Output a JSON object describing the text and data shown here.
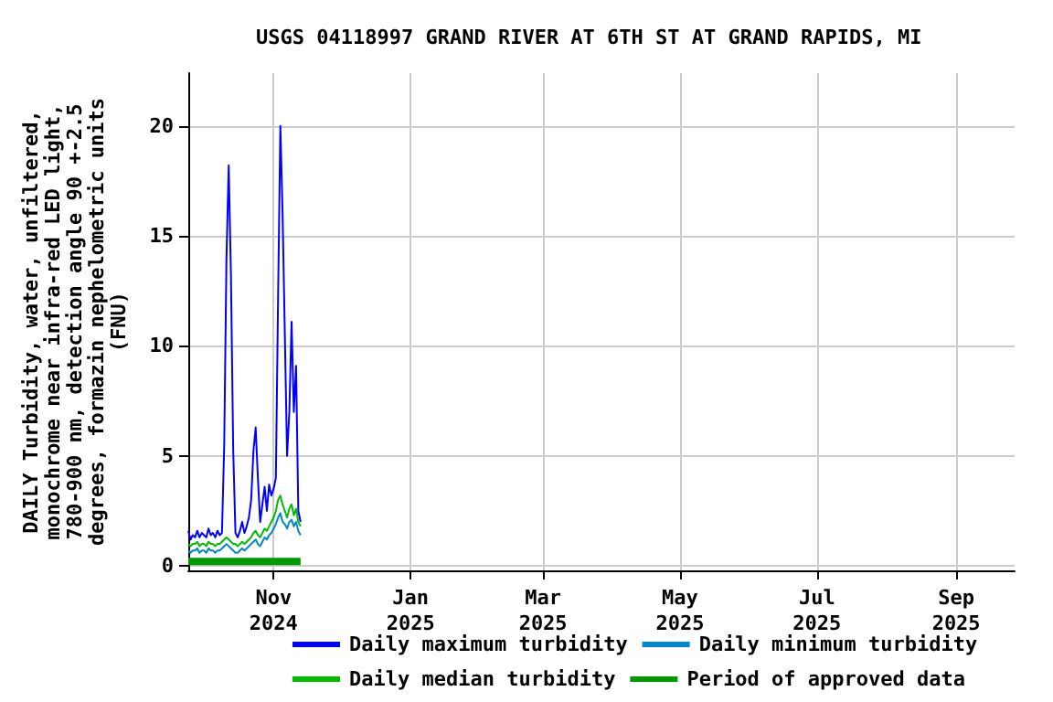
{
  "chart_data": {
    "type": "line",
    "title": "USGS 04118997 GRAND RIVER AT 6TH ST AT GRAND RAPIDS, MI",
    "ylabel": "DAILY Turbidity, water, unfiltered,\nmonochrome near infra-red LED light,\n780-900 nm, detection angle 90 +-2.5\ndegrees, formazin nephelometric units\n(FNU)",
    "x": [
      "2024-09-24",
      "2024-09-25",
      "2024-09-26",
      "2024-09-27",
      "2024-09-28",
      "2024-09-29",
      "2024-09-30",
      "2024-10-01",
      "2024-10-02",
      "2024-10-03",
      "2024-10-04",
      "2024-10-05",
      "2024-10-06",
      "2024-10-07",
      "2024-10-08",
      "2024-10-09",
      "2024-10-10",
      "2024-10-11",
      "2024-10-12",
      "2024-10-13",
      "2024-10-14",
      "2024-10-15",
      "2024-10-16",
      "2024-10-17",
      "2024-10-18",
      "2024-10-19",
      "2024-10-20",
      "2024-10-21",
      "2024-10-22",
      "2024-10-23",
      "2024-10-24",
      "2024-10-25",
      "2024-10-26",
      "2024-10-27",
      "2024-10-28",
      "2024-10-29",
      "2024-10-30",
      "2024-10-31",
      "2024-11-01",
      "2024-11-02",
      "2024-11-03",
      "2024-11-04",
      "2024-11-05",
      "2024-11-06",
      "2024-11-07",
      "2024-11-08",
      "2024-11-09",
      "2024-11-10",
      "2024-11-11",
      "2024-11-12",
      "2024-11-13"
    ],
    "series": [
      {
        "name": "Daily maximum turbidity",
        "color": "#0000ff",
        "values": [
          1.6,
          1.2,
          1.4,
          1.3,
          1.6,
          1.3,
          1.5,
          1.4,
          1.3,
          1.7,
          1.4,
          1.5,
          1.3,
          1.6,
          1.4,
          1.5,
          5.5,
          14,
          18.2,
          13.2,
          5.3,
          1.5,
          1.3,
          1.6,
          2.0,
          1.5,
          1.8,
          2.2,
          3.0,
          5.2,
          6.3,
          4.0,
          2.0,
          2.8,
          3.6,
          2.5,
          3.7,
          3.2,
          3.5,
          4.0,
          12.3,
          20.0,
          16.0,
          10.5,
          5.0,
          7.0,
          11.1,
          7.0,
          9.1,
          2.5,
          2.0
        ]
      },
      {
        "name": "Daily minimum turbidity",
        "color": "#0088cc",
        "values": [
          0.7,
          0.6,
          0.7,
          0.7,
          0.8,
          0.6,
          0.7,
          0.7,
          0.6,
          0.8,
          0.7,
          0.7,
          0.6,
          0.7,
          0.7,
          0.8,
          0.9,
          1.0,
          0.9,
          0.8,
          0.7,
          0.6,
          0.6,
          0.7,
          0.8,
          0.7,
          0.8,
          0.9,
          1.0,
          1.1,
          1.2,
          1.0,
          0.9,
          1.1,
          1.3,
          1.2,
          1.4,
          1.5,
          1.7,
          1.9,
          2.2,
          2.4,
          2.0,
          1.9,
          1.7,
          2.0,
          2.1,
          1.8,
          2.0,
          1.6,
          1.4
        ]
      },
      {
        "name": "Daily median turbidity",
        "color": "#00bb00",
        "values": [
          1.0,
          0.9,
          1.0,
          1.0,
          1.1,
          0.9,
          1.0,
          1.0,
          0.9,
          1.1,
          1.0,
          1.0,
          0.9,
          1.0,
          1.0,
          1.1,
          1.2,
          1.3,
          1.2,
          1.1,
          1.0,
          1.0,
          0.9,
          1.0,
          1.1,
          1.0,
          1.1,
          1.2,
          1.3,
          1.5,
          1.6,
          1.4,
          1.3,
          1.5,
          1.7,
          1.6,
          1.8,
          2.0,
          2.2,
          2.5,
          3.0,
          3.2,
          2.8,
          2.5,
          2.2,
          2.6,
          2.8,
          2.3,
          2.6,
          2.0,
          1.8
        ]
      },
      {
        "name": "Period of approved data",
        "color": "#009900",
        "x": [
          "2024-09-24",
          "2024-11-13"
        ],
        "values": [
          0.2,
          0.2
        ]
      }
    ],
    "xlim": [
      "2024-09-24",
      "2025-09-27"
    ],
    "xticks": [
      {
        "value": "2024-11-01",
        "label": "Nov 2024"
      },
      {
        "value": "2025-01-01",
        "label": "Jan 2025"
      },
      {
        "value": "2025-03-01",
        "label": "Mar 2025"
      },
      {
        "value": "2025-05-01",
        "label": "May 2025"
      },
      {
        "value": "2025-07-01",
        "label": "Jul 2025"
      },
      {
        "value": "2025-09-01",
        "label": "Sep 2025"
      }
    ],
    "ylim": [
      -0.2,
      22.4
    ],
    "yticks": [
      0,
      5,
      10,
      15,
      20
    ],
    "grid": true,
    "legend": "bottom",
    "marker": "none",
    "line_style": "solid"
  }
}
